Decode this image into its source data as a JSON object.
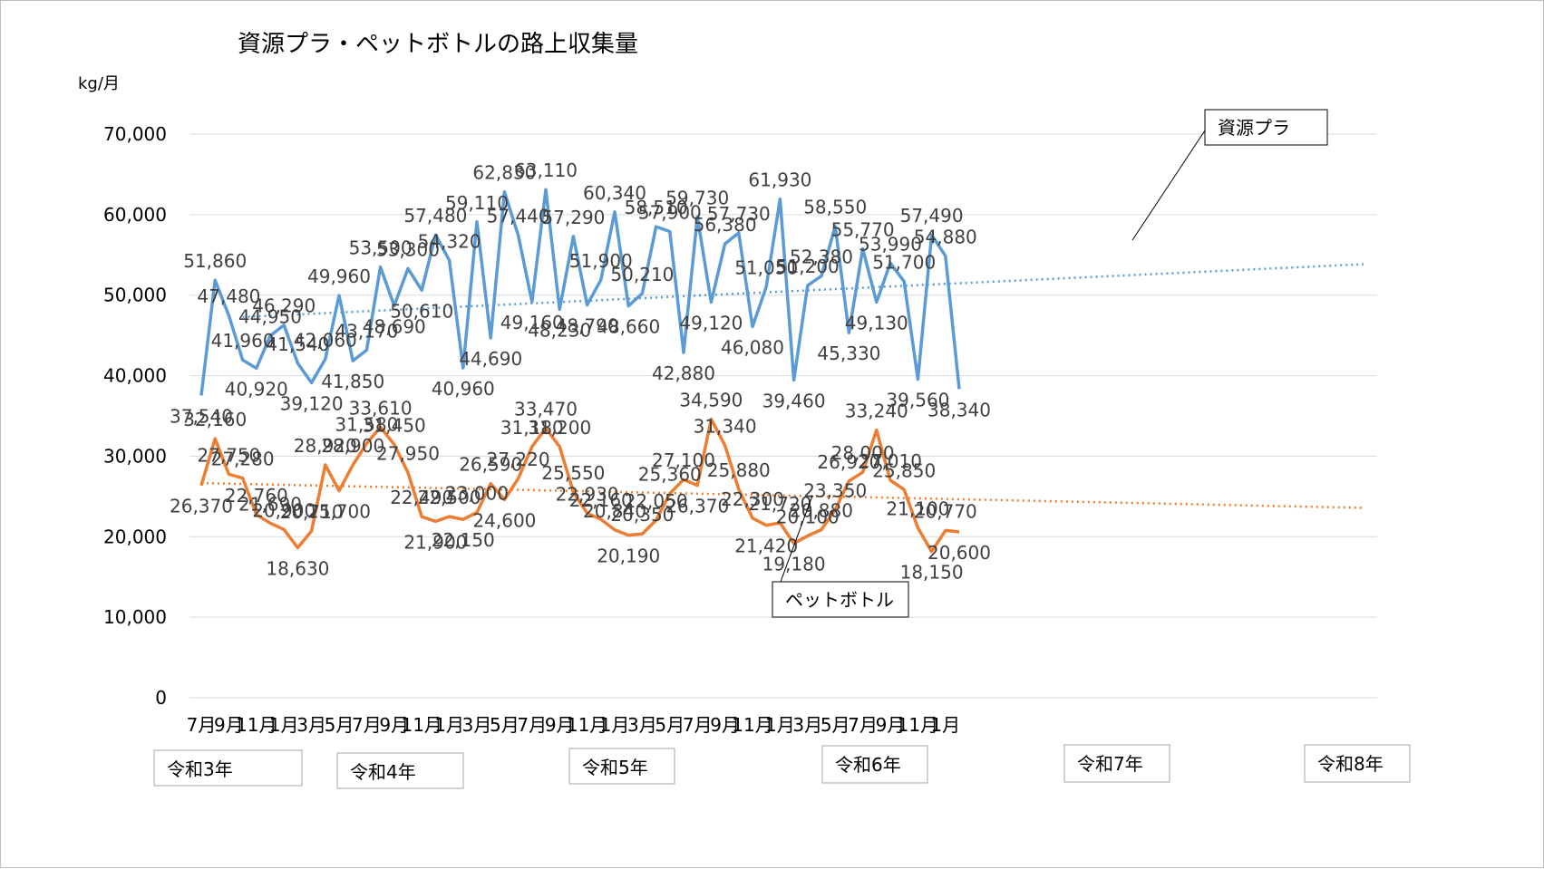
{
  "chart_data": {
    "type": "line",
    "title": "資源プラ・ペットボトルの路上収集量",
    "unit_label": "kg/月",
    "ylim": [
      0,
      70000
    ],
    "y_ticks": [
      "0",
      "10,000",
      "20,000",
      "30,000",
      "40,000",
      "50,000",
      "60,000",
      "70,000"
    ],
    "x_tick_labels": [
      "7月",
      "9月",
      "11月",
      "1月",
      "3月",
      "5月",
      "7月",
      "9月",
      "11月",
      "1月",
      "3月",
      "5月",
      "7月",
      "9月",
      "11月",
      "1月",
      "3月",
      "5月",
      "7月",
      "9月",
      "11月",
      "1月",
      "3月",
      "5月",
      "7月",
      "9月",
      "11月",
      "1月"
    ],
    "year_labels": [
      "令和3年",
      "令和4年",
      "令和5年",
      "令和6年",
      "令和7年",
      "令和8年"
    ],
    "grid": true,
    "series": [
      {
        "name": "資源プラ",
        "color": "#5b9bd5",
        "trendline": "linear",
        "values": [
          37540,
          51860,
          47480,
          41960,
          40920,
          44950,
          46290,
          41540,
          39120,
          42060,
          49960,
          41850,
          43170,
          53500,
          48690,
          53300,
          50610,
          57480,
          54320,
          40960,
          59110,
          44690,
          62830,
          57440,
          49160,
          63110,
          48230,
          57290,
          48790,
          51900,
          60340,
          48660,
          50210,
          58510,
          57900,
          42880,
          59730,
          49120,
          56380,
          57730,
          46080,
          51050,
          61930,
          39460,
          51200,
          52380,
          58550,
          45330,
          55770,
          49130,
          53990,
          51700,
          39560,
          57490,
          54880,
          38340
        ],
        "labels": [
          "37,540",
          "51,860",
          "47,480",
          "41,960",
          "40,920",
          "44,950",
          "46,290",
          "41,540",
          "39,120",
          "42,060",
          "49,960",
          "41,850",
          "43,170",
          "53,500",
          "48,690",
          "53,300",
          "50,610",
          "57,480",
          "54,320",
          "40,960",
          "59,110",
          "44,690",
          "62,830",
          "57,440",
          "49,160",
          "63,110",
          "48,230",
          "57,290",
          "48,790",
          "51,900",
          "60,340",
          "48,660",
          "50,210",
          "58,510",
          "57,900",
          "42,880",
          "59,730",
          "49,120",
          "56,380",
          "57,730",
          "46,080",
          "51,050",
          "61,930",
          "39,460",
          "51,200",
          "52,380",
          "58,550",
          "45,330",
          "55,770",
          "49,130",
          "53,990",
          "51,700",
          "39,560",
          "57,490",
          "54,880",
          "38,340"
        ]
      },
      {
        "name": "ペットボトル",
        "color": "#ed7d31",
        "trendline": "linear",
        "values": [
          26370,
          32160,
          27750,
          27280,
          22760,
          21690,
          20900,
          18630,
          20710,
          28920,
          25700,
          28900,
          31580,
          33610,
          31450,
          27950,
          22490,
          21900,
          22500,
          22150,
          23000,
          26590,
          24600,
          27220,
          31180,
          33470,
          31200,
          25550,
          22930,
          22160,
          20840,
          20190,
          20350,
          22050,
          25360,
          27100,
          26370,
          34590,
          31340,
          25880,
          22300,
          21420,
          21720,
          19180,
          20100,
          20880,
          23350,
          26920,
          28000,
          33240,
          27010,
          25850,
          21100,
          18150,
          20770,
          20600
        ],
        "labels": [
          "26,370",
          "32,160",
          "27,750",
          "27,280",
          "22,760",
          "21,690",
          "20,900",
          "18,630",
          "20,710",
          "28,920",
          "25,700",
          "28,900",
          "31,580",
          "33,610",
          "31,450",
          "27,950",
          "22,490",
          "21,900",
          "22,500",
          "22,150",
          "23,000",
          "26,590",
          "24,600",
          "27,220",
          "31,180",
          "33,470",
          "31,200",
          "25,550",
          "22,930",
          "22,160",
          "20,840",
          "20,190",
          "20,350",
          "22,050",
          "25,360",
          "27,100",
          "26,370",
          "34,590",
          "31,340",
          "25,880",
          "22,300",
          "21,420",
          "21,720",
          "19,180",
          "20,100",
          "20,880",
          "23,350",
          "26,920",
          "28,000",
          "33,240",
          "27,010",
          "25,850",
          "21,100",
          "18,150",
          "20,770",
          "20,600"
        ]
      }
    ]
  }
}
